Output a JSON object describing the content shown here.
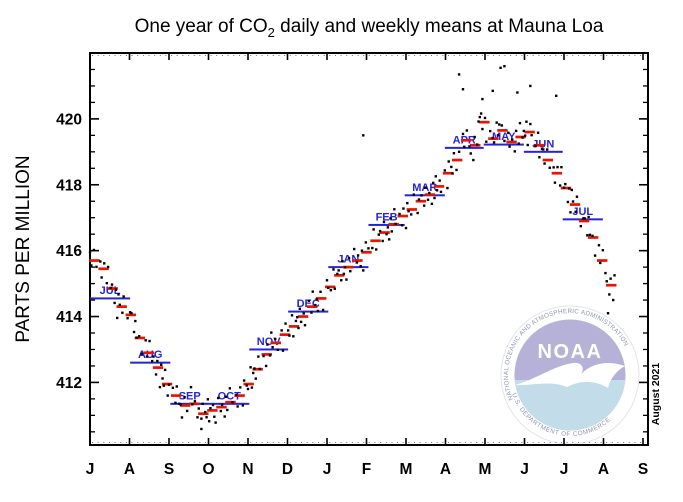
{
  "title": {
    "prefix": "One year of CO",
    "sub": "2",
    "suffix": " daily and weekly means at Mauna Loa"
  },
  "axes": {
    "y_title": "PARTS PER MILLION",
    "y_ticks": [
      412,
      414,
      416,
      418,
      420
    ],
    "y_minor_step": 0.5,
    "x_tick_labels": [
      "J",
      "A",
      "S",
      "O",
      "N",
      "D",
      "J",
      "F",
      "M",
      "A",
      "M",
      "J",
      "J",
      "A",
      "S"
    ]
  },
  "annotations": {
    "date_note": "August 2021"
  },
  "legend_semantics": {
    "daily_means": "black dots",
    "weekly_means": "red dashes",
    "monthly_means": "blue lines with month labels"
  },
  "colors": {
    "daily": "#000000",
    "weekly": "#e81500",
    "monthly": "#2424dd",
    "axis": "#000000",
    "logo_sky": "#b5b1d7",
    "logo_sea": "#c3dcea",
    "logo_ring_text": "#9096b2"
  },
  "logo": {
    "ring_top_text": "NATIONAL OCEANIC AND ATMOSPHERIC ADMINISTRATION",
    "ring_bottom_text": "U.S. DEPARTMENT OF COMMERCE",
    "center_text": "NOAA"
  },
  "chart_data": {
    "type": "scatter",
    "title": "One year of CO2 daily and weekly means at Mauna Loa",
    "ylabel": "PARTS PER MILLION",
    "ylim": [
      410.1,
      422.0
    ],
    "x_months": [
      "J",
      "A",
      "S",
      "O",
      "N",
      "D",
      "J",
      "F",
      "M",
      "A",
      "M",
      "J",
      "J",
      "A",
      "S"
    ],
    "start_date": "2020-07-01",
    "days_span": 427,
    "grid": false,
    "monthly_means": [
      {
        "label": "JUL",
        "start_day": 0,
        "end_day": 31,
        "value": 414.55
      },
      {
        "label": "AUG",
        "start_day": 31,
        "end_day": 62,
        "value": 412.6
      },
      {
        "label": "SEP",
        "start_day": 62,
        "end_day": 92,
        "value": 411.35
      },
      {
        "label": "OCT",
        "start_day": 92,
        "end_day": 123,
        "value": 411.35
      },
      {
        "label": "NOV",
        "start_day": 123,
        "end_day": 153,
        "value": 413.0
      },
      {
        "label": "DEC",
        "start_day": 153,
        "end_day": 184,
        "value": 414.15
      },
      {
        "label": "JAN",
        "start_day": 184,
        "end_day": 215,
        "value": 415.5
      },
      {
        "label": "FEB",
        "start_day": 215,
        "end_day": 243,
        "value": 416.78
      },
      {
        "label": "MAR",
        "start_day": 243,
        "end_day": 274,
        "value": 417.68
      },
      {
        "label": "APR",
        "start_day": 274,
        "end_day": 304,
        "value": 419.12
      },
      {
        "label": "MAY",
        "start_day": 304,
        "end_day": 335,
        "value": 419.22
      },
      {
        "label": "JUN",
        "start_day": 335,
        "end_day": 365,
        "value": 419.0
      },
      {
        "label": "JUL",
        "start_day": 365,
        "end_day": 396,
        "value": 416.95
      }
    ],
    "weekly_means": {
      "first_week_start_day": 0,
      "week_length_days": 7,
      "values": [
        415.7,
        415.45,
        414.85,
        414.3,
        414.05,
        413.35,
        412.9,
        412.45,
        411.95,
        411.6,
        411.3,
        411.35,
        411.05,
        411.15,
        411.25,
        411.4,
        411.6,
        411.95,
        412.4,
        412.85,
        413.2,
        413.45,
        413.7,
        414.0,
        414.3,
        414.55,
        414.9,
        415.25,
        415.5,
        415.7,
        415.95,
        416.3,
        416.55,
        416.8,
        417.05,
        417.25,
        417.5,
        417.7,
        417.95,
        418.35,
        418.75,
        419.35,
        419.2,
        419.9,
        419.4,
        419.65,
        419.3,
        419.45,
        419.6,
        419.2,
        418.75,
        418.35,
        417.9,
        417.4,
        416.9,
        416.4,
        415.7,
        414.95
      ]
    },
    "daily_means": {
      "note": "daily dots scatter about the weekly means; reconstructed deterministically from weekly values + noise cycle below",
      "last_day": 406,
      "day_offsets_pattern": [
        [
          0,
          1,
          3,
          5
        ],
        [
          1,
          2,
          4,
          6
        ],
        [
          0,
          2,
          3,
          5,
          6
        ],
        [
          0,
          1,
          2,
          4,
          5
        ],
        [
          1,
          3,
          4,
          6
        ]
      ],
      "noise_cycle": [
        0.15,
        -0.22,
        0.32,
        -0.12,
        0.05,
        -0.35,
        0.25,
        -0.18,
        0.42,
        -0.06,
        0.12,
        -0.28,
        0.2,
        -0.45,
        0.3,
        0.02,
        -0.15,
        0.38,
        -0.3,
        0.08
      ],
      "outliers": [
        [
          86,
          410.9
        ],
        [
          97,
          410.78
        ],
        [
          211,
          419.5
        ],
        [
          285,
          421.35
        ],
        [
          288,
          420.9
        ],
        [
          303,
          420.6
        ],
        [
          311,
          420.85
        ],
        [
          317,
          421.55
        ],
        [
          320,
          421.6
        ],
        [
          330,
          420.8
        ],
        [
          340,
          421.0
        ],
        [
          360,
          420.7
        ],
        [
          400,
          414.1
        ]
      ]
    }
  }
}
